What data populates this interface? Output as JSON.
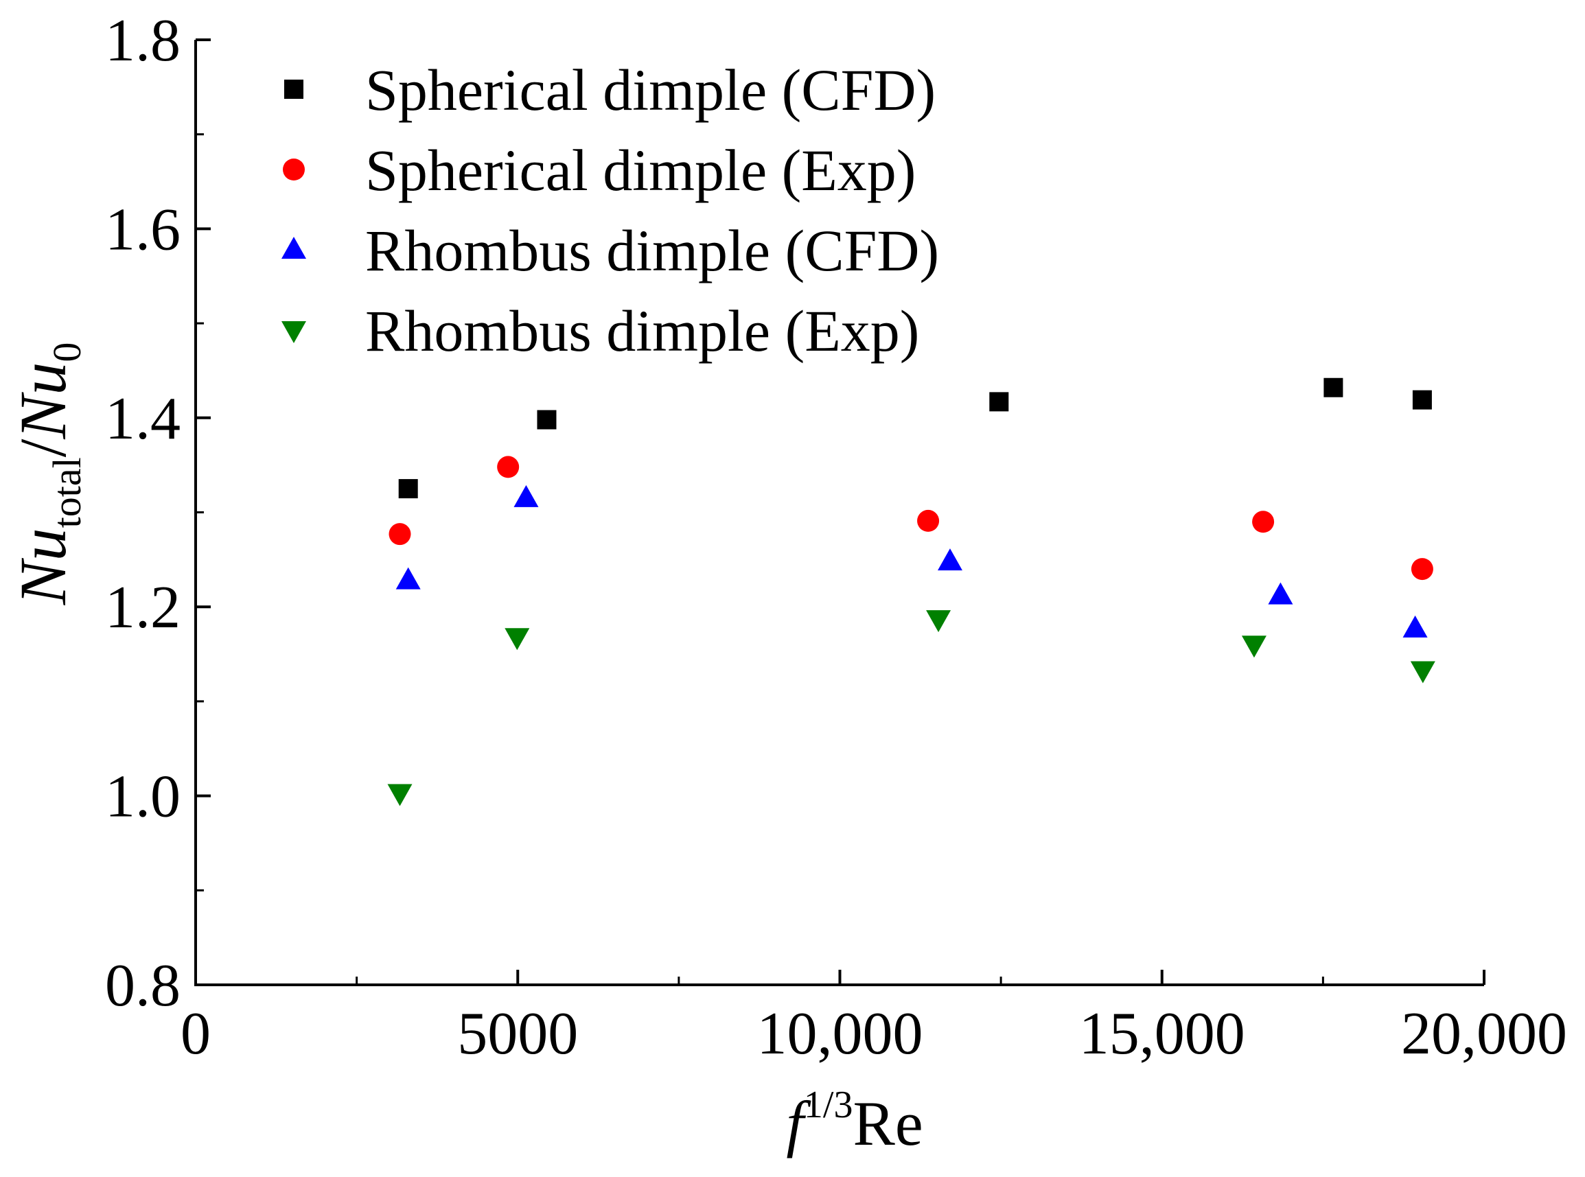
{
  "chart_data": {
    "type": "scatter",
    "title": "",
    "xlabel": {
      "main": "f",
      "sup": "1/3",
      "rest": "Re"
    },
    "ylabel": {
      "num": "Nu",
      "num_sub": "total",
      "sep": "/",
      "den": "Nu",
      "den_sub": "0"
    },
    "xlim": [
      0,
      20000
    ],
    "ylim": [
      0.8,
      1.8
    ],
    "xticks": [
      {
        "value": 0,
        "label": "0"
      },
      {
        "value": 5000,
        "label": "5000"
      },
      {
        "value": 10000,
        "label": "10,000"
      },
      {
        "value": 15000,
        "label": "15,000"
      },
      {
        "value": 20000,
        "label": "20,000"
      }
    ],
    "yticks": [
      {
        "value": 0.8,
        "label": "0.8"
      },
      {
        "value": 1.0,
        "label": "1.0"
      },
      {
        "value": 1.2,
        "label": "1.2"
      },
      {
        "value": 1.4,
        "label": "1.4"
      },
      {
        "value": 1.6,
        "label": "1.6"
      },
      {
        "value": 1.8,
        "label": "1.8"
      }
    ],
    "legend_position": "top-left",
    "grid": false,
    "series": [
      {
        "name": "Spherical dimple (CFD)",
        "marker": "square",
        "color": "#000000",
        "points": [
          [
            3300,
            1.325
          ],
          [
            5450,
            1.398
          ],
          [
            12470,
            1.417
          ],
          [
            17660,
            1.432
          ],
          [
            19040,
            1.419
          ]
        ]
      },
      {
        "name": "Spherical dimple (Exp)",
        "marker": "circle",
        "color": "#ff0000",
        "points": [
          [
            3170,
            1.277
          ],
          [
            4850,
            1.348
          ],
          [
            11370,
            1.291
          ],
          [
            16570,
            1.29
          ],
          [
            19040,
            1.24
          ]
        ]
      },
      {
        "name": "Rhombus dimple (CFD)",
        "marker": "triangle-up",
        "color": "#0000ff",
        "points": [
          [
            3300,
            1.228
          ],
          [
            5130,
            1.315
          ],
          [
            11710,
            1.248
          ],
          [
            16840,
            1.212
          ],
          [
            18930,
            1.177
          ]
        ]
      },
      {
        "name": "Rhombus dimple (Exp)",
        "marker": "triangle-down",
        "color": "#008000",
        "points": [
          [
            3170,
            1.003
          ],
          [
            4990,
            1.168
          ],
          [
            11530,
            1.187
          ],
          [
            16430,
            1.16
          ],
          [
            19050,
            1.133
          ]
        ]
      }
    ]
  }
}
